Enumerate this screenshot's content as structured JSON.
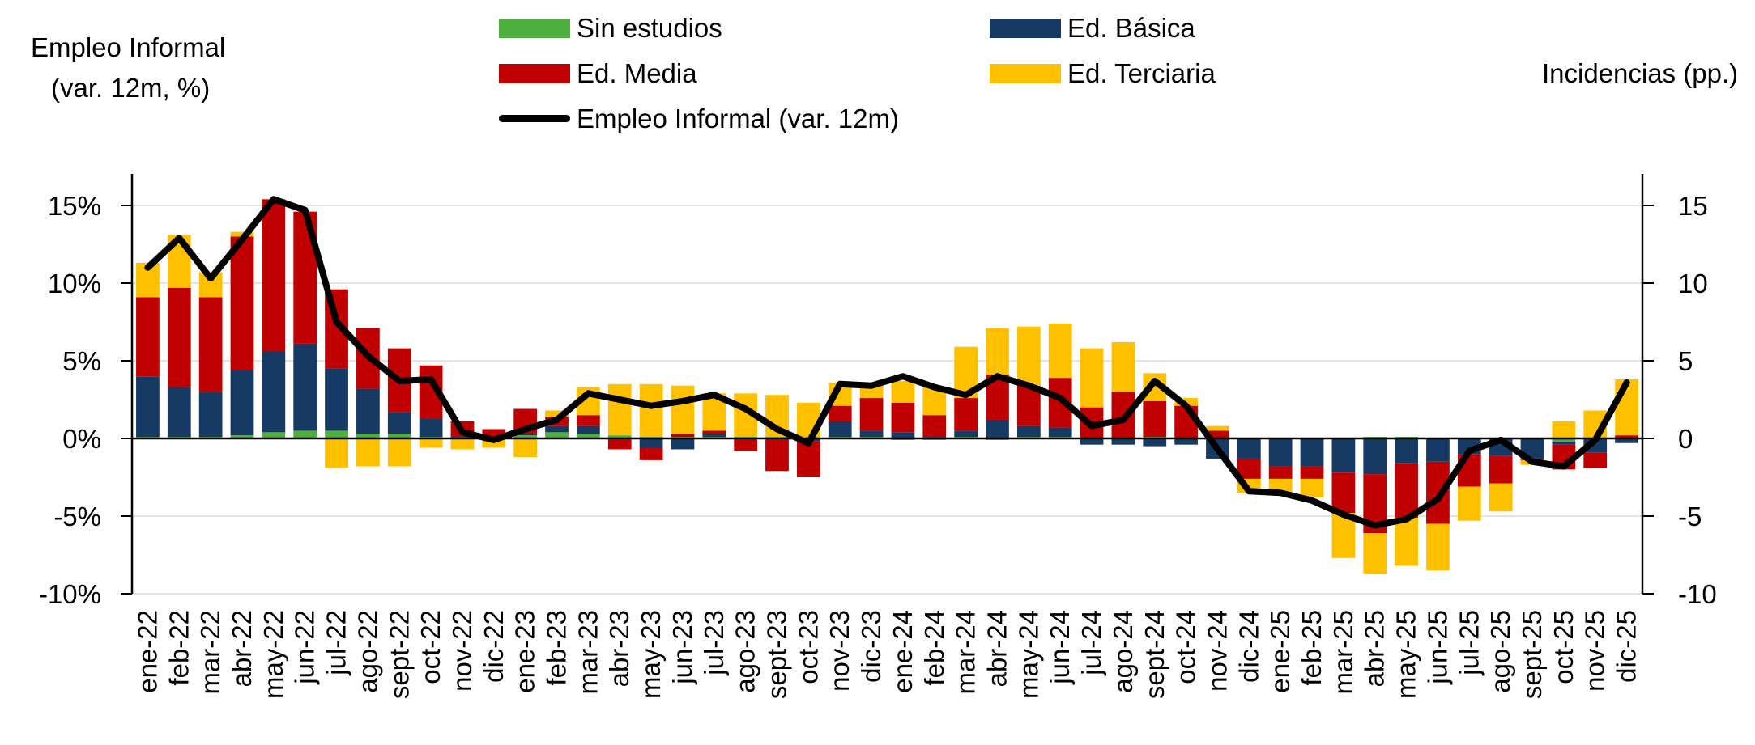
{
  "chart_data": {
    "type": "bar",
    "stacked": true,
    "title": "",
    "ylabel_left": [
      "Empleo Informal",
      "(var. 12m, %)"
    ],
    "ylabel_right": "Incidencias (pp.)",
    "ylim": [
      -10,
      17
    ],
    "left_ticks": [
      "15%",
      "10%",
      "5%",
      "0%",
      "-5%",
      "-10%"
    ],
    "right_ticks": [
      "15",
      "10",
      "5",
      "0",
      "-5",
      "-10"
    ],
    "tick_values": [
      15,
      10,
      5,
      0,
      -5,
      -10
    ],
    "colors": {
      "Sin estudios": "#4caf3e",
      "Ed. Básica": "#173a64",
      "Ed. Media": "#c00000",
      "Ed. Terciaria": "#ffc000",
      "line": "#000000"
    },
    "categories": [
      "ene-22",
      "feb-22",
      "mar-22",
      "abr-22",
      "may-22",
      "jun-22",
      "jul-22",
      "ago-22",
      "sept-22",
      "oct-22",
      "nov-22",
      "dic-22",
      "ene-23",
      "feb-23",
      "mar-23",
      "abr-23",
      "may-23",
      "jun-23",
      "jul-23",
      "ago-23",
      "sept-23",
      "oct-23",
      "nov-23",
      "dic-23",
      "ene-24",
      "feb-24",
      "mar-24",
      "abr-24",
      "may-24",
      "jun-24",
      "jul-24",
      "ago-24",
      "sept-24",
      "oct-24",
      "nov-24",
      "dic-24",
      "ene-25",
      "feb-25",
      "mar-25",
      "abr-25",
      "may-25",
      "jun-25",
      "jul-25",
      "ago-25",
      "sept-25",
      "oct-25",
      "nov-25",
      "dic-25"
    ],
    "series": [
      {
        "name": "Sin estudios",
        "kind": "bar",
        "values": [
          0.1,
          0.1,
          0.1,
          0.2,
          0.4,
          0.5,
          0.5,
          0.3,
          0.3,
          0.1,
          0.0,
          0.0,
          0.2,
          0.4,
          0.3,
          0.2,
          0.1,
          0.1,
          0.1,
          0.1,
          0.1,
          0.0,
          0.1,
          0.1,
          -0.1,
          -0.1,
          0.1,
          -0.1,
          0.1,
          0.1,
          0.0,
          0.0,
          0.1,
          0.0,
          0.0,
          0.0,
          0.0,
          0.0,
          0.0,
          0.1,
          0.1,
          0.0,
          0.0,
          0.0,
          0.0,
          -0.2,
          0.0,
          0.0
        ]
      },
      {
        "name": "Ed. Básica",
        "kind": "bar",
        "values": [
          3.9,
          3.2,
          2.9,
          4.2,
          5.2,
          5.6,
          4.0,
          2.9,
          1.4,
          1.2,
          0.1,
          0.0,
          0.1,
          0.4,
          0.5,
          -0.1,
          -0.6,
          -0.7,
          0.2,
          -0.1,
          -0.1,
          -0.2,
          1.0,
          0.4,
          0.4,
          0.1,
          0.4,
          1.2,
          0.7,
          0.6,
          -0.4,
          -0.4,
          -0.5,
          -0.4,
          -1.3,
          -1.3,
          -1.8,
          -1.8,
          -2.2,
          -2.3,
          -1.6,
          -1.5,
          -1.0,
          -1.1,
          -1.3,
          -0.2,
          -0.9,
          -0.3
        ]
      },
      {
        "name": "Ed. Media",
        "kind": "bar",
        "values": [
          5.1,
          6.4,
          6.1,
          8.6,
          9.8,
          8.5,
          5.1,
          3.9,
          4.1,
          3.4,
          1.0,
          0.6,
          1.6,
          0.6,
          0.7,
          -0.6,
          -0.8,
          0.2,
          0.2,
          -0.7,
          -2.0,
          -2.3,
          1.0,
          2.1,
          1.9,
          1.4,
          2.1,
          2.9,
          2.6,
          3.2,
          2.0,
          3.0,
          2.3,
          2.1,
          0.5,
          -1.3,
          -0.8,
          -0.8,
          -2.6,
          -3.8,
          -3.5,
          -4.0,
          -2.1,
          -1.8,
          -0.1,
          -1.6,
          -1.0,
          0.2
        ]
      },
      {
        "name": "Ed. Terciaria",
        "kind": "bar",
        "values": [
          2.2,
          3.4,
          1.6,
          0.3,
          0.0,
          0.0,
          -1.9,
          -1.8,
          -1.8,
          -0.6,
          -0.7,
          -0.6,
          -1.2,
          0.4,
          1.8,
          3.3,
          3.4,
          3.1,
          2.4,
          2.8,
          2.7,
          2.3,
          1.5,
          0.8,
          1.4,
          1.8,
          3.3,
          3.0,
          3.8,
          3.5,
          3.8,
          3.2,
          1.8,
          0.5,
          0.3,
          -0.9,
          -0.9,
          -1.2,
          -2.9,
          -2.6,
          -3.1,
          -3.0,
          -2.2,
          -1.8,
          -0.3,
          1.1,
          1.8,
          3.6
        ]
      },
      {
        "name": "Empleo Informal (var. 12m)",
        "kind": "line",
        "values": [
          11.0,
          12.9,
          10.3,
          12.8,
          15.4,
          14.7,
          7.5,
          5.3,
          3.7,
          3.8,
          0.4,
          -0.1,
          0.6,
          1.2,
          2.9,
          2.5,
          2.1,
          2.4,
          2.8,
          1.9,
          0.6,
          -0.3,
          3.5,
          3.4,
          4.0,
          3.3,
          2.8,
          4.0,
          3.4,
          2.6,
          0.8,
          1.2,
          3.7,
          2.1,
          -0.7,
          -3.4,
          -3.5,
          -4.0,
          -4.9,
          -5.6,
          -5.2,
          -3.9,
          -0.8,
          -0.1,
          -1.5,
          -1.8,
          -0.1,
          3.6
        ]
      }
    ],
    "legend": {
      "items": [
        {
          "label": "Sin estudios",
          "kind": "bar"
        },
        {
          "label": "Ed. Básica",
          "kind": "bar"
        },
        {
          "label": "Ed. Media",
          "kind": "bar"
        },
        {
          "label": "Ed. Terciaria",
          "kind": "bar"
        },
        {
          "label": "Empleo Informal (var. 12m)",
          "kind": "line"
        }
      ],
      "placement": "top"
    },
    "grid": true
  }
}
